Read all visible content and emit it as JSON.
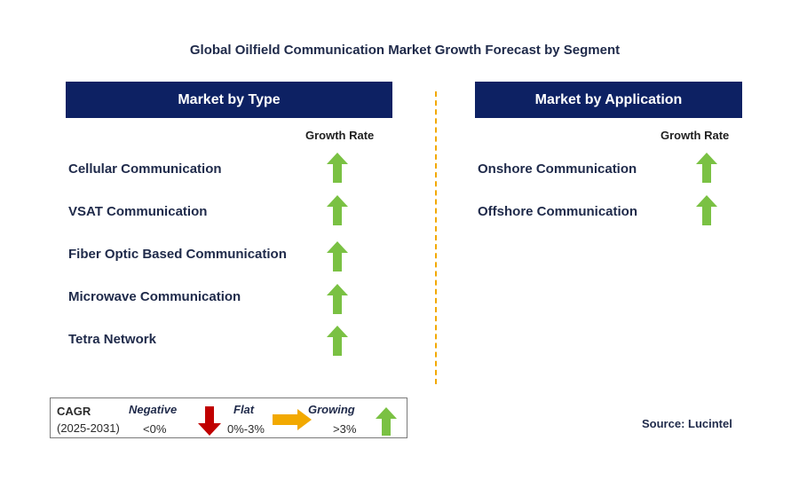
{
  "title": "Global Oilfield Communication Market Growth Forecast by Segment",
  "type_panel": {
    "header": "Market by Type",
    "growth_label": "Growth Rate",
    "items": [
      {
        "label": "Cellular Communication",
        "trend": "growing"
      },
      {
        "label": "VSAT Communication",
        "trend": "growing"
      },
      {
        "label": "Fiber Optic Based Communication",
        "trend": "growing"
      },
      {
        "label": "Microwave Communication",
        "trend": "growing"
      },
      {
        "label": "Tetra Network",
        "trend": "growing"
      }
    ]
  },
  "application_panel": {
    "header": "Market by Application",
    "growth_label": "Growth Rate",
    "items": [
      {
        "label": "Onshore Communication",
        "trend": "growing"
      },
      {
        "label": "Offshore Communication",
        "trend": "growing"
      }
    ]
  },
  "legend": {
    "cagr_label": "CAGR",
    "period": "(2025-2031)",
    "negative": {
      "label": "Negative",
      "range": "<0%",
      "icon": "red-down-arrow-icon"
    },
    "flat": {
      "label": "Flat",
      "range": "0%-3%",
      "icon": "orange-right-arrow-icon"
    },
    "growing": {
      "label": "Growing",
      "range": ">3%",
      "icon": "green-up-arrow-icon"
    }
  },
  "source": "Source: Lucintel",
  "colors": {
    "header_bg": "#0d2163",
    "growing": "#7ac143",
    "negative": "#c00000",
    "flat": "#f2a900",
    "divider": "#f2a900"
  }
}
